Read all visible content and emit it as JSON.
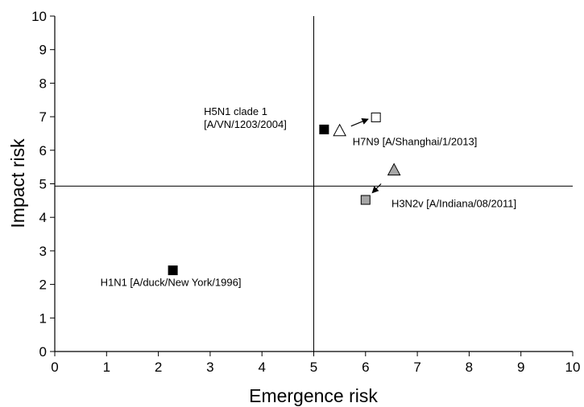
{
  "chart_data": {
    "type": "scatter",
    "title": "",
    "xlabel": "Emergence risk",
    "ylabel": "Impact risk",
    "xlim": [
      0,
      10
    ],
    "ylim": [
      0,
      10
    ],
    "xticks": [
      "0",
      "1",
      "2",
      "3",
      "4",
      "5",
      "6",
      "7",
      "8",
      "9",
      "10"
    ],
    "yticks": [
      "0",
      "1",
      "2",
      "3",
      "4",
      "5",
      "6",
      "7",
      "8",
      "9",
      "10"
    ],
    "grid": false,
    "reference_lines": {
      "x": 5,
      "y": 4.93
    },
    "points": [
      {
        "x": 2.28,
        "y": 2.42,
        "marker": "square",
        "fill": "#000000"
      },
      {
        "x": 5.2,
        "y": 6.62,
        "marker": "square",
        "fill": "#000000"
      },
      {
        "x": 5.5,
        "y": 6.6,
        "marker": "triangle",
        "fill": "#ffffff"
      },
      {
        "x": 6.2,
        "y": 6.98,
        "marker": "square",
        "fill": "#ffffff"
      },
      {
        "x": 6.55,
        "y": 5.43,
        "marker": "triangle",
        "fill": "#a6a6a6"
      },
      {
        "x": 6.0,
        "y": 4.52,
        "marker": "square",
        "fill": "#a6a6a6"
      }
    ],
    "arrows": [
      {
        "from": [
          5.72,
          6.72
        ],
        "to": [
          6.05,
          6.93
        ]
      },
      {
        "from": [
          6.3,
          5.0
        ],
        "to": [
          6.13,
          4.73
        ]
      }
    ],
    "annotations": [
      {
        "lines": [
          "H1N1 [A/duck/New York/1996]"
        ],
        "x": 0.88,
        "y": 1.95
      },
      {
        "lines": [
          "H5N1 clade 1",
          "[A/VN/1203/2004]"
        ],
        "x": 2.88,
        "y": 7.05
      },
      {
        "lines": [
          "H7N9 [A/Shanghai/1/2013]"
        ],
        "x": 5.75,
        "y": 6.15
      },
      {
        "lines": [
          "H3N2v [A/Indiana/08/2011]"
        ],
        "x": 6.5,
        "y": 4.3
      }
    ]
  }
}
